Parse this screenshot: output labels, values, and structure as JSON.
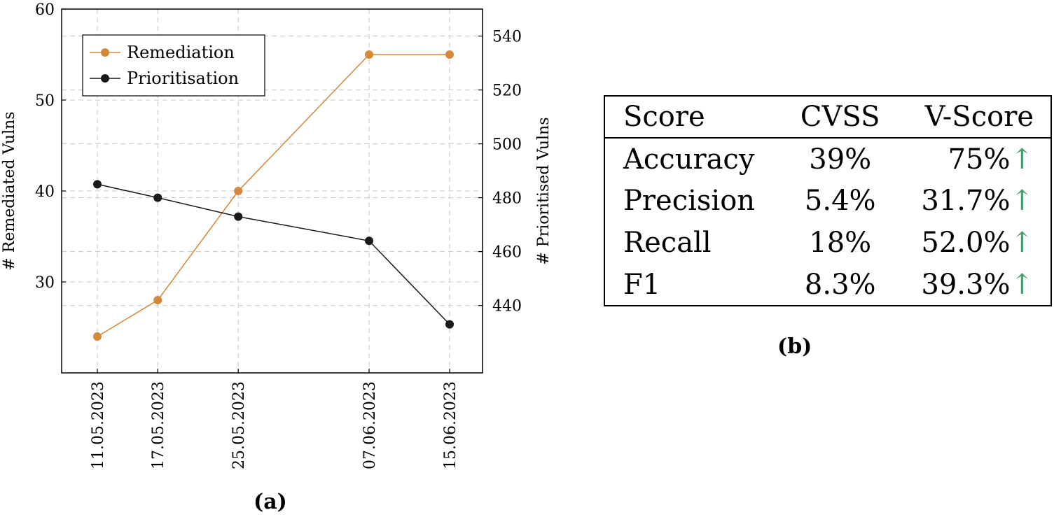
{
  "chart_data": [
    {
      "type": "line",
      "caption": "(a)",
      "categories": [
        "11.05.2023",
        "17.05.2023",
        "25.05.2023",
        "07.06.2023",
        "15.06.2023"
      ],
      "x_days": [
        0,
        6,
        14,
        27,
        35
      ],
      "series": [
        {
          "name": "Remediation",
          "axis": "left",
          "color": "#d4883a",
          "values": [
            24,
            28,
            40,
            55,
            55
          ]
        },
        {
          "name": "Prioritisation",
          "axis": "right",
          "color": "#1a1a1a",
          "values": [
            485,
            480,
            473,
            464,
            433
          ]
        }
      ],
      "ylabel": "# Remediated Vulns",
      "ylabel_right": "# Prioritised Vulns",
      "ylim": [
        20,
        60
      ],
      "yticks": [
        "30",
        "40",
        "50",
        "60"
      ],
      "ylim_right": [
        415,
        550
      ],
      "yticks_right": [
        "440",
        "460",
        "480",
        "500",
        "520",
        "540"
      ],
      "grid": true,
      "legend": "top-left"
    },
    {
      "type": "table",
      "caption": "(b)",
      "columns": [
        "Score",
        "CVSS",
        "V-Score"
      ],
      "rows": [
        {
          "metric": "Accuracy",
          "cvss": "39%",
          "vscore": "75%",
          "arrow": "↑"
        },
        {
          "metric": "Precision",
          "cvss": "5.4%",
          "vscore": "31.7%",
          "arrow": "↑"
        },
        {
          "metric": "Recall",
          "cvss": "18%",
          "vscore": "52.0%",
          "arrow": "↑"
        },
        {
          "metric": "F1",
          "cvss": "8.3%",
          "vscore": "39.3%",
          "arrow": "↑"
        }
      ]
    }
  ]
}
